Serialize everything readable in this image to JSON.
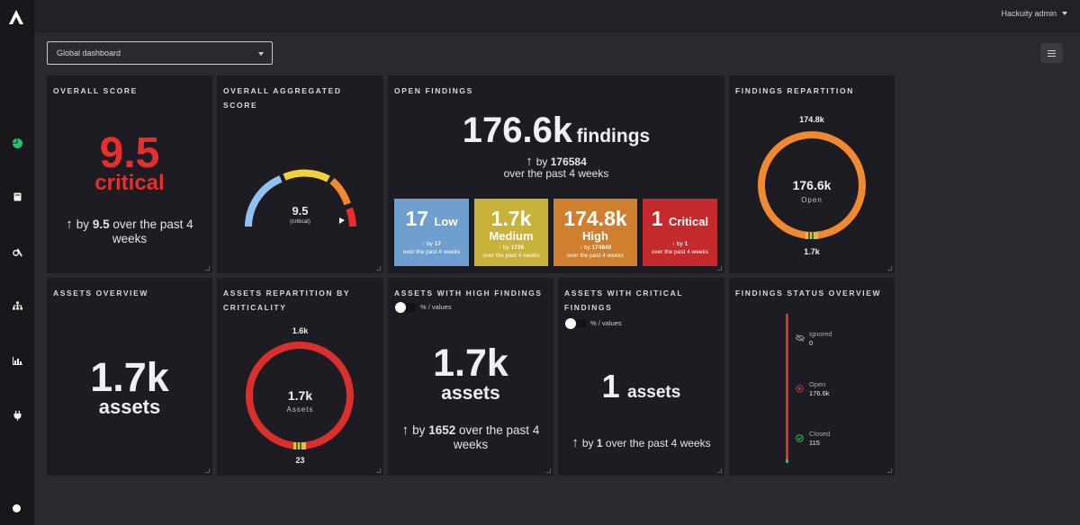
{
  "user": {
    "name": "Hackuity admin"
  },
  "dashboard_select": {
    "value": "Global dashboard"
  },
  "cards": {
    "overall_score": {
      "title": "OVERALL SCORE",
      "value": "9.5",
      "severity": "critical",
      "trend_prefix": "by",
      "trend_value": "9.5",
      "trend_suffix": "over the past 4 weeks"
    },
    "aggregated": {
      "title": "OVERALL AGGREGATED SCORE",
      "value": "9.5",
      "severity": "(critical)"
    },
    "open_findings": {
      "title": "OPEN FINDINGS",
      "value": "176.6k",
      "unit": "findings",
      "trend_prefix": "by",
      "trend_value": "176584",
      "trend_suffix": "over the past 4 weeks",
      "boxes": [
        {
          "value": "17",
          "label": "Low",
          "prefix": "by",
          "delta": "17",
          "period": "over the past 4 weeks",
          "color": "#6f9fcf"
        },
        {
          "value": "1.7k",
          "label": "Medium",
          "prefix": "by",
          "delta": "1726",
          "period": "over the past 4 weeks",
          "color": "#c9b23a"
        },
        {
          "value": "174.8k",
          "label": "High",
          "prefix": "by",
          "delta": "174840",
          "period": "over the past 4 weeks",
          "color": "#cf7f2e"
        },
        {
          "value": "1",
          "label": "Critical",
          "prefix": "by",
          "delta": "1",
          "period": "over the past 4 weeks",
          "color": "#c4292b"
        }
      ]
    },
    "findings_repartition": {
      "title": "FINDINGS REPARTITION",
      "top_label": "174.8k",
      "bottom_label": "1.7k",
      "center_value": "176.6k",
      "center_label": "Open"
    },
    "assets_overview": {
      "title": "ASSETS OVERVIEW",
      "value": "1.7k",
      "unit": "assets"
    },
    "assets_repartition": {
      "title": "ASSETS REPARTITION BY CRITICALITY",
      "top_label": "1.6k",
      "bottom_label": "23",
      "center_value": "1.7k",
      "center_label": "Assets"
    },
    "assets_high": {
      "title": "ASSETS WITH HIGH FINDINGS",
      "toggle_label": "% / values",
      "value": "1.7k",
      "unit": "assets",
      "trend_prefix": "by",
      "trend_value": "1652",
      "trend_suffix": "over the past 4 weeks"
    },
    "assets_critical": {
      "title": "ASSETS WITH CRITICAL FINDINGS",
      "toggle_label": "% / values",
      "value": "1",
      "unit": "assets",
      "trend_prefix": "by",
      "trend_value": "1",
      "trend_suffix": "over the past 4 weeks"
    },
    "findings_status": {
      "title": "FINDINGS STATUS OVERVIEW",
      "items": [
        {
          "label": "Ignored",
          "value": "0",
          "icon": "eye-off-icon"
        },
        {
          "label": "Open",
          "value": "176.6k",
          "icon": "target-icon"
        },
        {
          "label": "Closed",
          "value": "115",
          "icon": "check-circle-icon"
        }
      ]
    }
  },
  "colors": {
    "critical": "#e82d2d",
    "gauge_blue": "#8ec3f0",
    "gauge_yellow": "#f2d13c",
    "gauge_orange": "#f0892f",
    "ring_orange": "#f0892f",
    "ring_red": "#d9302c"
  }
}
